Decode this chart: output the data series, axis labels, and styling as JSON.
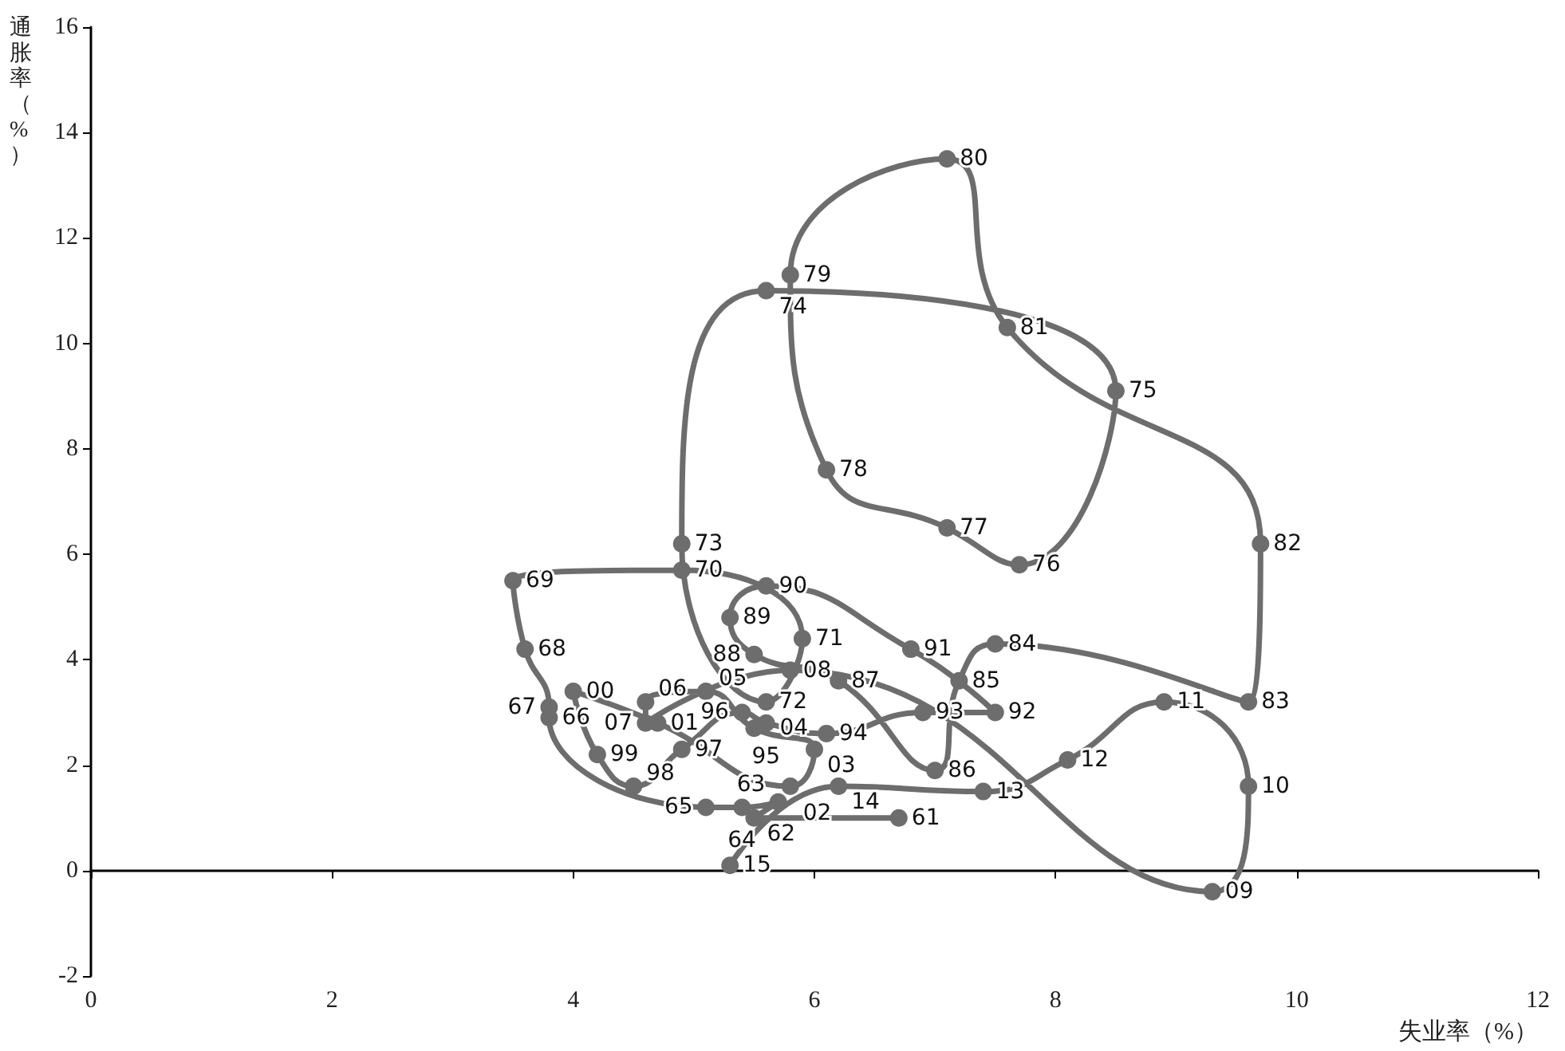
{
  "chart_data": {
    "type": "line",
    "xlabel": "失业率（%）",
    "ylabel": "通胀率（%）",
    "x": [
      6.7,
      5.5,
      5.7,
      5.4,
      5.1,
      3.8,
      3.8,
      3.6,
      3.5,
      4.9,
      5.9,
      5.6,
      4.9,
      5.6,
      8.5,
      7.7,
      7.1,
      6.1,
      5.8,
      7.1,
      7.6,
      9.7,
      9.6,
      7.5,
      7.2,
      7.0,
      6.2,
      5.5,
      5.3,
      5.6,
      6.8,
      7.5,
      6.9,
      6.1,
      5.6,
      5.4,
      4.9,
      4.5,
      4.2,
      4.0,
      4.7,
      5.8,
      6.0,
      5.5,
      5.1,
      4.6,
      4.6,
      5.8,
      9.3,
      9.6,
      8.9,
      8.1,
      7.4,
      6.2,
      5.3
    ],
    "series": [
      {
        "color": "#6d6d6d",
        "values": [
          1.0,
          1.0,
          1.3,
          1.2,
          1.2,
          2.9,
          3.1,
          4.2,
          5.5,
          5.7,
          4.4,
          3.2,
          6.2,
          11.0,
          9.1,
          5.8,
          6.5,
          7.6,
          11.3,
          13.5,
          10.3,
          6.2,
          3.2,
          4.3,
          3.6,
          1.9,
          3.6,
          4.1,
          4.8,
          5.4,
          4.2,
          3.0,
          3.0,
          2.6,
          2.8,
          3.0,
          2.3,
          1.6,
          2.2,
          3.4,
          2.8,
          1.6,
          2.3,
          2.7,
          3.4,
          3.2,
          2.8,
          3.8,
          -0.4,
          1.6,
          3.2,
          2.1,
          1.5,
          1.6,
          0.1
        ]
      }
    ],
    "annotations": [
      {
        "text": "61",
        "x": 6.7,
        "y": 1.0
      },
      {
        "text": "62",
        "x": 5.5,
        "y": 1.0
      },
      {
        "text": "63",
        "x": 5.7,
        "y": 1.3
      },
      {
        "text": "64",
        "x": 5.4,
        "y": 1.2
      },
      {
        "text": "65",
        "x": 5.1,
        "y": 1.2
      },
      {
        "text": "66",
        "x": 3.8,
        "y": 2.9
      },
      {
        "text": "67",
        "x": 3.8,
        "y": 3.1
      },
      {
        "text": "68",
        "x": 3.6,
        "y": 4.2
      },
      {
        "text": "69",
        "x": 3.5,
        "y": 5.5
      },
      {
        "text": "70",
        "x": 4.9,
        "y": 5.7
      },
      {
        "text": "71",
        "x": 5.9,
        "y": 4.4
      },
      {
        "text": "72",
        "x": 5.6,
        "y": 3.2
      },
      {
        "text": "73",
        "x": 4.9,
        "y": 6.2
      },
      {
        "text": "74",
        "x": 5.6,
        "y": 11.0
      },
      {
        "text": "75",
        "x": 8.5,
        "y": 9.1
      },
      {
        "text": "76",
        "x": 7.7,
        "y": 5.8
      },
      {
        "text": "77",
        "x": 7.1,
        "y": 6.5
      },
      {
        "text": "78",
        "x": 6.1,
        "y": 7.6
      },
      {
        "text": "79",
        "x": 5.8,
        "y": 11.3
      },
      {
        "text": "80",
        "x": 7.1,
        "y": 13.5
      },
      {
        "text": "81",
        "x": 7.6,
        "y": 10.3
      },
      {
        "text": "82",
        "x": 9.7,
        "y": 6.2
      },
      {
        "text": "83",
        "x": 9.6,
        "y": 3.2
      },
      {
        "text": "84",
        "x": 7.5,
        "y": 4.3
      },
      {
        "text": "85",
        "x": 7.2,
        "y": 3.6
      },
      {
        "text": "86",
        "x": 7.0,
        "y": 1.9
      },
      {
        "text": "87",
        "x": 6.2,
        "y": 3.6
      },
      {
        "text": "88",
        "x": 5.5,
        "y": 4.1
      },
      {
        "text": "89",
        "x": 5.3,
        "y": 4.8
      },
      {
        "text": "90",
        "x": 5.6,
        "y": 5.4
      },
      {
        "text": "91",
        "x": 6.8,
        "y": 4.2
      },
      {
        "text": "92",
        "x": 7.5,
        "y": 3.0
      },
      {
        "text": "93",
        "x": 6.9,
        "y": 3.0
      },
      {
        "text": "94",
        "x": 6.1,
        "y": 2.6
      },
      {
        "text": "95",
        "x": 5.6,
        "y": 2.8
      },
      {
        "text": "96",
        "x": 5.4,
        "y": 3.0
      },
      {
        "text": "97",
        "x": 4.9,
        "y": 2.3
      },
      {
        "text": "98",
        "x": 4.5,
        "y": 1.6
      },
      {
        "text": "99",
        "x": 4.2,
        "y": 2.2
      },
      {
        "text": "00",
        "x": 4.0,
        "y": 3.4
      },
      {
        "text": "01",
        "x": 4.7,
        "y": 2.8
      },
      {
        "text": "02",
        "x": 5.8,
        "y": 1.6
      },
      {
        "text": "03",
        "x": 6.0,
        "y": 2.3
      },
      {
        "text": "04",
        "x": 5.5,
        "y": 2.7
      },
      {
        "text": "05",
        "x": 5.1,
        "y": 3.4
      },
      {
        "text": "06",
        "x": 4.6,
        "y": 3.2
      },
      {
        "text": "07",
        "x": 4.6,
        "y": 2.8
      },
      {
        "text": "08",
        "x": 5.8,
        "y": 3.8
      },
      {
        "text": "09",
        "x": 9.3,
        "y": -0.4
      },
      {
        "text": "10",
        "x": 9.6,
        "y": 1.6
      },
      {
        "text": "11",
        "x": 8.9,
        "y": 3.2
      },
      {
        "text": "12",
        "x": 8.1,
        "y": 2.1
      },
      {
        "text": "13",
        "x": 7.4,
        "y": 1.5
      },
      {
        "text": "14",
        "x": 6.2,
        "y": 1.6
      },
      {
        "text": "15",
        "x": 5.3,
        "y": 0.1
      }
    ],
    "xlim": [
      0,
      12
    ],
    "xticks": [
      0,
      2,
      4,
      6,
      8,
      10,
      12
    ],
    "ylim": [
      -2,
      16
    ],
    "yticks": [
      -2,
      0,
      2,
      4,
      6,
      8,
      10,
      12,
      14,
      16
    ],
    "marker": "circle",
    "line_style": "solid"
  }
}
